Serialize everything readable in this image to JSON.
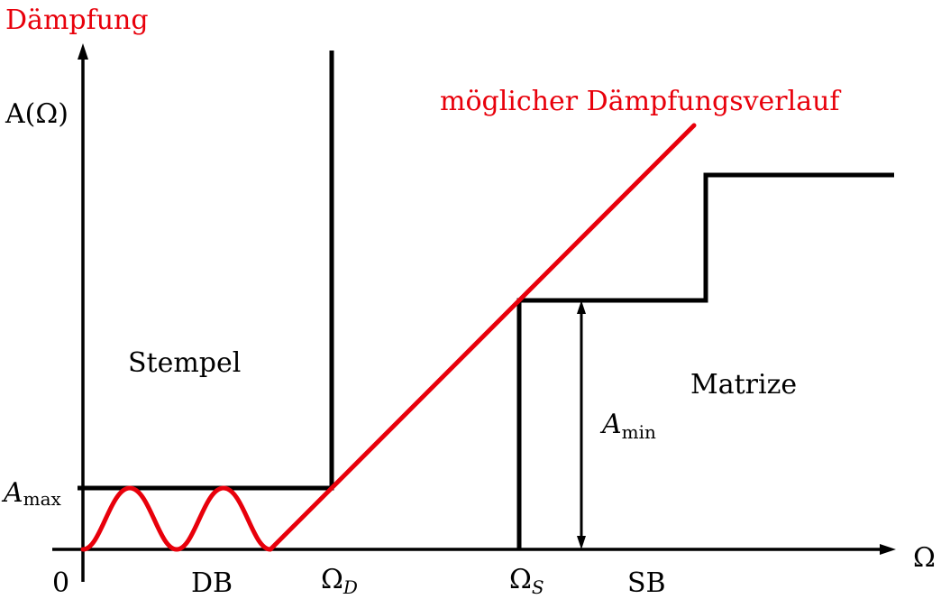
{
  "y_label": "Dämpfung",
  "y_symbol": "A(Ω)",
  "x_symbol": "Ω",
  "origin_label": "0",
  "a_max": {
    "base": "A",
    "sub": "max"
  },
  "a_min": {
    "base": "A",
    "sub": "min"
  },
  "omega_d": {
    "base": "Ω",
    "sub": "D"
  },
  "omega_s": {
    "base": "Ω",
    "sub": "S"
  },
  "db_label": "DB",
  "sb_label": "SB",
  "stempel_label": "Stempel",
  "matrize_label": "Matrize",
  "curve_label": "möglicher Dämpfungsverlauf",
  "colors": {
    "curve": "#e8000b",
    "lines": "#000000",
    "background": "#ffffff"
  }
}
